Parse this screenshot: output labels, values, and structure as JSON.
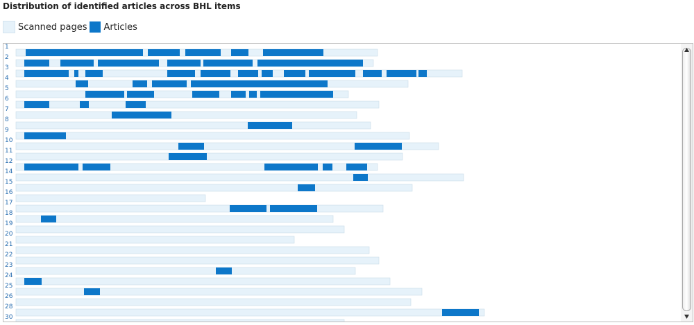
{
  "chart_data": {
    "type": "article-distribution",
    "title": "Distribution of identified articles across BHL items",
    "legend": [
      {
        "name": "Scanned pages",
        "color": "#e6f2fa"
      },
      {
        "name": "Articles",
        "color": "#0d77c9"
      }
    ],
    "rows": [
      {
        "label": "1",
        "pages": 521,
        "articles": [
          [
            14,
            183
          ],
          [
            190,
            236
          ],
          [
            244,
            295
          ],
          [
            310,
            335
          ],
          [
            356,
            443
          ]
        ]
      },
      {
        "label": "2",
        "pages": 515,
        "articles": [
          [
            12,
            48
          ],
          [
            64,
            112
          ],
          [
            118,
            206
          ],
          [
            218,
            266
          ],
          [
            270,
            341
          ],
          [
            348,
            500
          ]
        ]
      },
      {
        "label": "3",
        "pages": 643,
        "articles": [
          [
            12,
            76
          ],
          [
            84,
            90
          ],
          [
            100,
            125
          ],
          [
            218,
            258
          ],
          [
            266,
            309
          ],
          [
            320,
            349
          ],
          [
            354,
            370
          ],
          [
            386,
            417
          ],
          [
            422,
            489
          ],
          [
            500,
            527
          ],
          [
            534,
            577
          ],
          [
            580,
            592
          ]
        ]
      },
      {
        "label": "4",
        "pages": 565,
        "articles": [
          [
            86,
            104
          ],
          [
            168,
            189
          ],
          [
            196,
            246
          ],
          [
            252,
            449
          ]
        ]
      },
      {
        "label": "5",
        "pages": 479,
        "articles": [
          [
            100,
            156
          ],
          [
            160,
            199
          ],
          [
            254,
            293
          ],
          [
            310,
            331
          ],
          [
            336,
            347
          ],
          [
            352,
            457
          ]
        ]
      },
      {
        "label": "6",
        "pages": 523,
        "articles": [
          [
            12,
            48
          ],
          [
            92,
            105
          ],
          [
            158,
            187
          ]
        ]
      },
      {
        "label": "7",
        "pages": 491,
        "articles": [
          [
            138,
            224
          ]
        ]
      },
      {
        "label": "8",
        "pages": 511,
        "articles": [
          [
            334,
            398
          ]
        ]
      },
      {
        "label": "9",
        "pages": 567,
        "articles": [
          [
            12,
            72
          ]
        ]
      },
      {
        "label": "10",
        "pages": 609,
        "articles": [
          [
            234,
            271
          ],
          [
            488,
            556
          ]
        ]
      },
      {
        "label": "11",
        "pages": 557,
        "articles": [
          [
            220,
            275
          ]
        ]
      },
      {
        "label": "12",
        "pages": 521,
        "articles": [
          [
            12,
            90
          ],
          [
            96,
            136
          ],
          [
            358,
            435
          ],
          [
            442,
            456
          ],
          [
            476,
            506
          ]
        ]
      },
      {
        "label": "14",
        "pages": 645,
        "articles": [
          [
            486,
            507
          ]
        ]
      },
      {
        "label": "15",
        "pages": 571,
        "articles": [
          [
            406,
            431
          ]
        ]
      },
      {
        "label": "16",
        "pages": 273,
        "articles": []
      },
      {
        "label": "17",
        "pages": 529,
        "articles": [
          [
            308,
            361
          ],
          [
            366,
            434
          ]
        ]
      },
      {
        "label": "18",
        "pages": 457,
        "articles": [
          [
            36,
            58
          ]
        ]
      },
      {
        "label": "19",
        "pages": 473,
        "articles": []
      },
      {
        "label": "20",
        "pages": 401,
        "articles": []
      },
      {
        "label": "21",
        "pages": 509,
        "articles": []
      },
      {
        "label": "22",
        "pages": 523,
        "articles": []
      },
      {
        "label": "23",
        "pages": 489,
        "articles": [
          [
            288,
            311
          ]
        ]
      },
      {
        "label": "24",
        "pages": 539,
        "articles": [
          [
            12,
            37
          ]
        ]
      },
      {
        "label": "25",
        "pages": 585,
        "articles": [
          [
            98,
            121
          ]
        ]
      },
      {
        "label": "26",
        "pages": 569,
        "articles": []
      },
      {
        "label": "28",
        "pages": 675,
        "articles": [
          [
            614,
            667
          ]
        ]
      },
      {
        "label": "30",
        "pages": 473,
        "articles": []
      }
    ]
  }
}
